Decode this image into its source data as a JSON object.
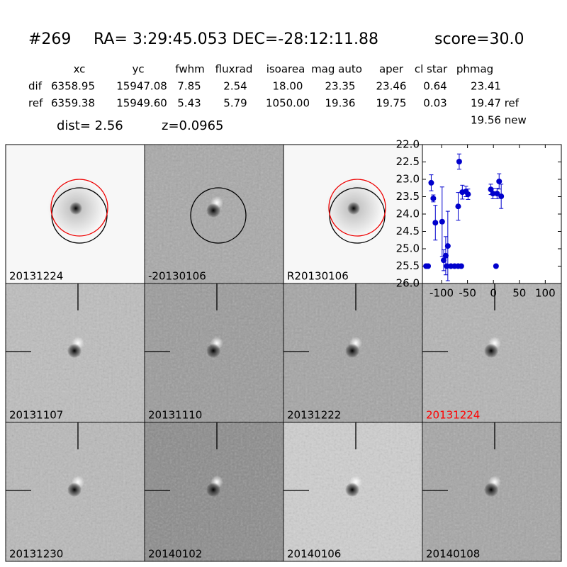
{
  "header": {
    "id": "#269",
    "coords": "RA= 3:29:45.053 DEC=-28:12:11.88",
    "score": "score=30.0"
  },
  "table": {
    "columns": [
      "xc",
      "yc",
      "fwhm",
      "fluxrad",
      "isoarea",
      "mag auto",
      "aper",
      "cl star",
      "phmag"
    ],
    "rows": [
      [
        "dif",
        "6358.95",
        "15947.08",
        "7.85",
        "2.54",
        "18.00",
        "23.35",
        "23.46",
        "0.64",
        "23.41"
      ],
      [
        "ref",
        "6359.38",
        "15949.60",
        "5.43",
        "5.79",
        "1050.00",
        "19.36",
        "19.75",
        "0.03",
        "19.47 ref"
      ]
    ],
    "extra": "19.56 new",
    "dist": "dist=  2.56",
    "z": "z=0.0965"
  },
  "stamps": [
    "20131224",
    "-20130106",
    "R20130106",
    "20131107",
    "20131110",
    "20131222",
    "20131224",
    "20131230",
    "20140102",
    "20140106",
    "20140108"
  ],
  "chart_data": {
    "type": "scatter",
    "color": "#0000cc",
    "inverted_y": true,
    "x": [
      -130,
      -126,
      -120,
      -116,
      -112,
      -99,
      -96,
      -92,
      -90,
      -88,
      -82,
      -75,
      -68,
      -68,
      -66,
      -62,
      -60,
      -53,
      -49,
      -5,
      -1,
      5,
      7,
      11,
      15
    ],
    "values": [
      25.5,
      25.5,
      23.1,
      23.55,
      24.25,
      24.22,
      25.33,
      25.2,
      25.5,
      24.92,
      25.5,
      25.5,
      23.78,
      25.5,
      22.49,
      25.5,
      23.37,
      23.35,
      23.43,
      23.29,
      23.41,
      25.5,
      23.41,
      23.06,
      23.49
    ],
    "errors": [
      null,
      null,
      0.23,
      0.1,
      0.5,
      1.0,
      0.3,
      0.55,
      null,
      1.0,
      null,
      null,
      0.4,
      null,
      0.22,
      null,
      0.2,
      0.15,
      0.15,
      0.15,
      0.15,
      null,
      0.15,
      0.22,
      0.35
    ],
    "xlim": [
      -137,
      131
    ],
    "ylim": [
      22,
      26
    ],
    "xticks": [
      -100,
      -50,
      0,
      50,
      100
    ],
    "yticks": [
      {
        "value": 22,
        "label": "22.0"
      },
      {
        "value": 22.5,
        "label": "22.5"
      },
      {
        "value": 23,
        "label": "23.0"
      },
      {
        "value": 23.5,
        "label": "23.5"
      },
      {
        "value": 24,
        "label": "24.0"
      },
      {
        "value": 24.5,
        "label": "24.5"
      },
      {
        "value": 25,
        "label": "25.0"
      },
      {
        "value": 25.5,
        "label": "25.5"
      },
      {
        "value": 26,
        "label": "26.0"
      }
    ]
  }
}
